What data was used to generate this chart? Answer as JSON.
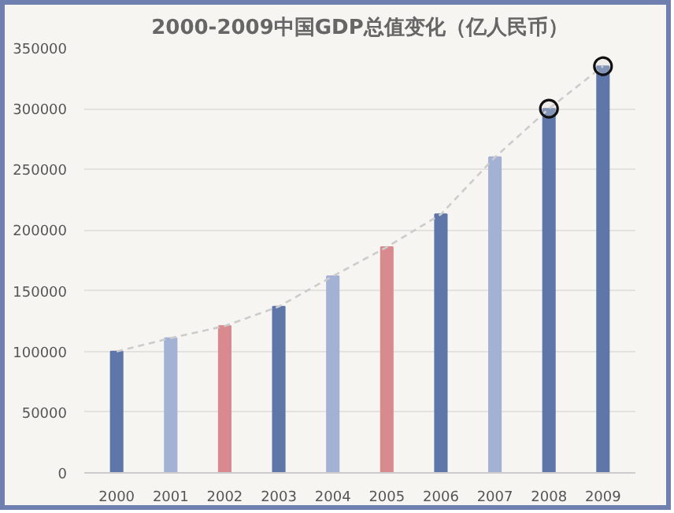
{
  "chart_data": {
    "type": "bar",
    "title": "2000-2009中国GDP总值变化（亿人民币）",
    "categories": [
      "2000",
      "2001",
      "2002",
      "2003",
      "2004",
      "2005",
      "2006",
      "2007",
      "2008",
      "2009"
    ],
    "series": [
      {
        "values": [
          100000,
          111000,
          121000,
          137000,
          162000,
          186000,
          213000,
          260000,
          300000,
          335000
        ],
        "colors": [
          "#5e77a8",
          "#a3b1d5",
          "#d98a8e",
          "#5e77a8",
          "#a3b1d5",
          "#d98a8e",
          "#5e77a8",
          "#a3b1d5",
          "#5e77a8",
          "#5e77a8"
        ]
      },
      {
        "type": "line",
        "color": "#cccccc",
        "line_style": "dashed",
        "marker": "none",
        "values": [
          100000,
          111000,
          121000,
          137000,
          162000,
          186000,
          213000,
          260000,
          300000,
          335000
        ]
      },
      {
        "type": "scatter",
        "color": "#dcdcdc",
        "marker": "circle",
        "values": [
          null,
          null,
          null,
          null,
          null,
          null,
          null,
          null,
          300000,
          335000
        ]
      }
    ],
    "ylim": [
      0,
      350000
    ],
    "yticks": [
      0,
      50000,
      100000,
      150000,
      200000,
      250000,
      300000,
      350000
    ],
    "grid": "y"
  }
}
